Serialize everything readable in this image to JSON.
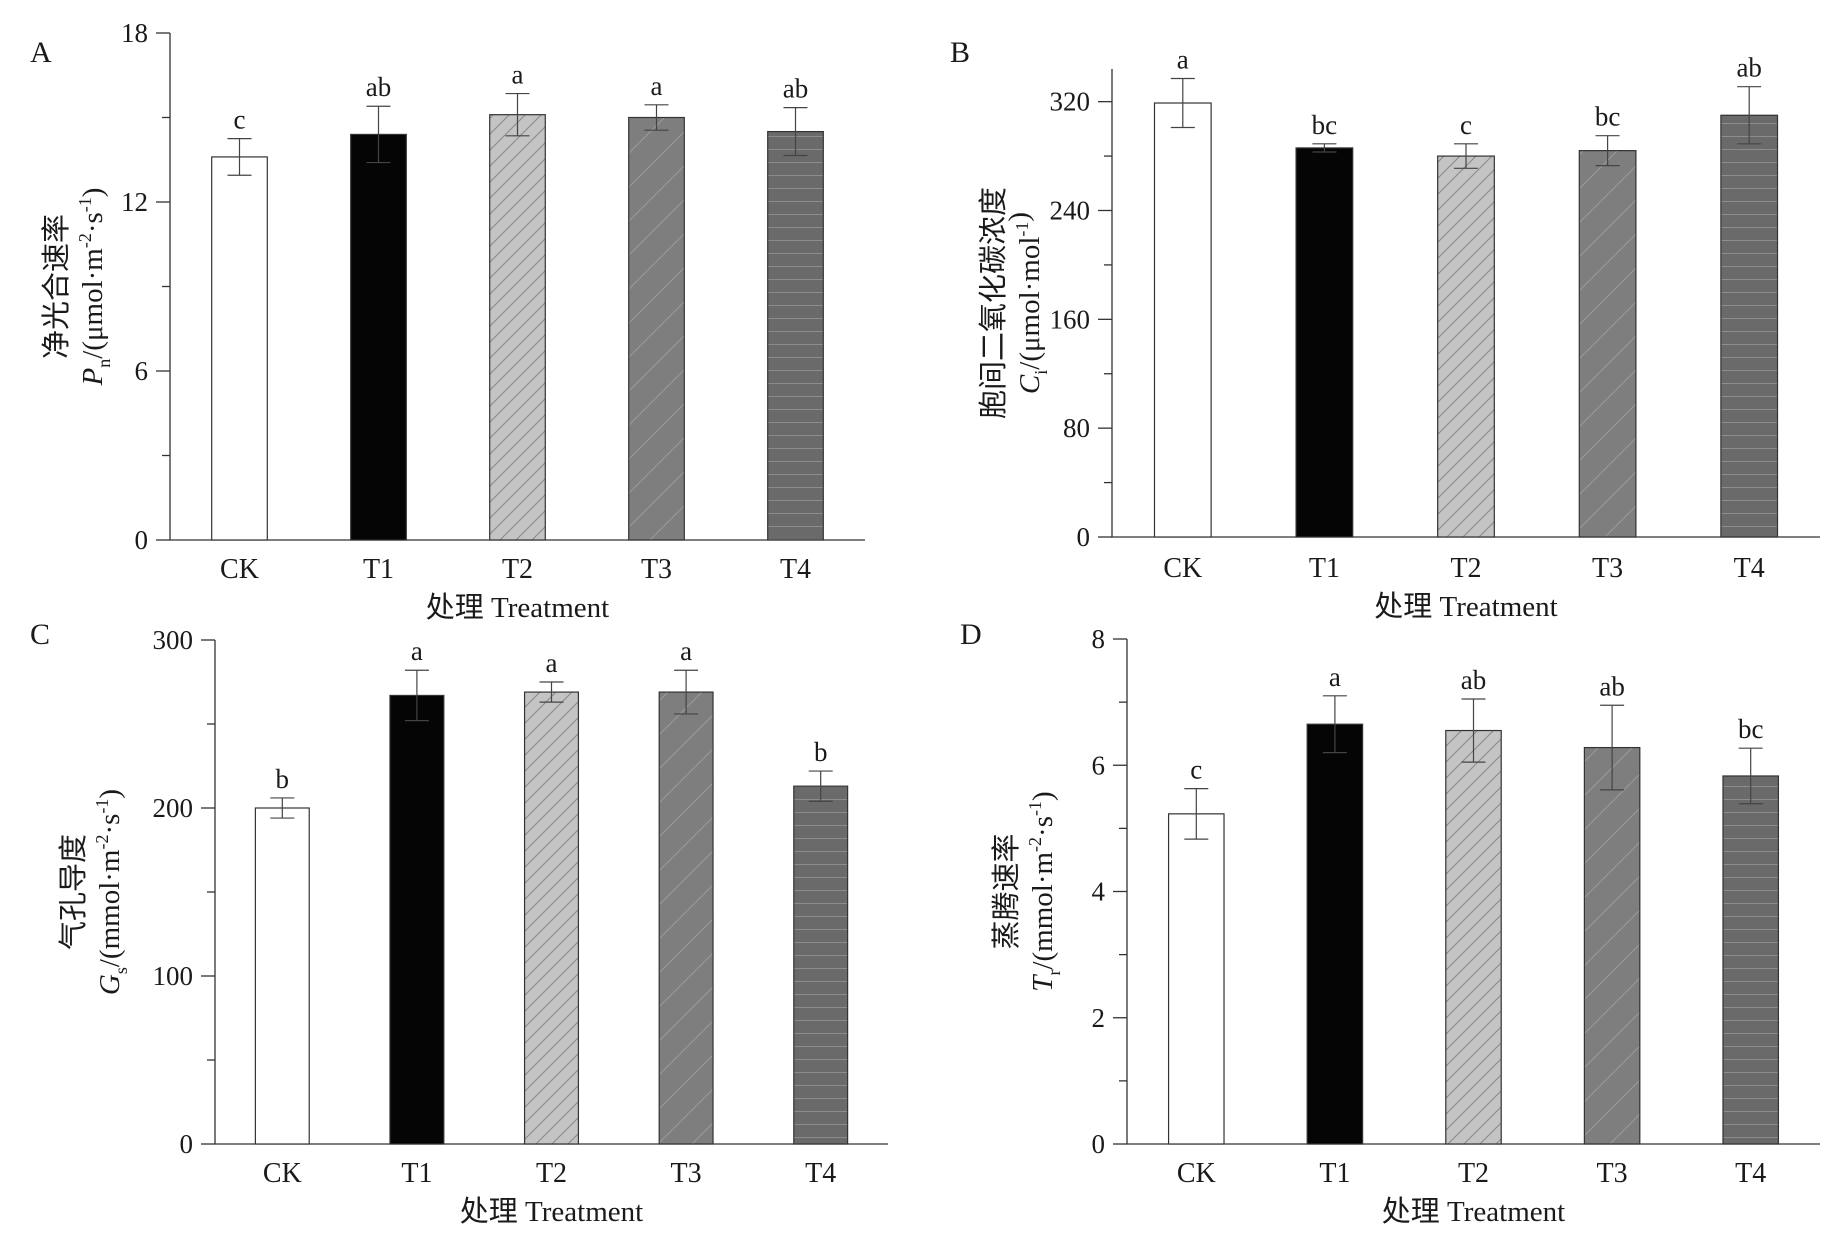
{
  "chart_data": [
    {
      "type": "bar",
      "panel": "A",
      "categories": [
        "CK",
        "T1",
        "T2",
        "T3",
        "T4"
      ],
      "values": [
        13.6,
        14.4,
        15.1,
        15.0,
        14.5
      ],
      "errors": [
        0.65,
        1.0,
        0.75,
        0.45,
        0.85
      ],
      "significance": [
        "c",
        "ab",
        "a",
        "a",
        "ab"
      ],
      "xlabel": "处理 Treatment",
      "ylabel_main": "净光合速率",
      "ylabel_sym": "P",
      "ylabel_sub": "n",
      "ylabel_unit": "/(μmol·m",
      "ylabel_exp1": "-2",
      "ylabel_mid": "·s",
      "ylabel_exp2": "-1",
      "ylabel_end": ")",
      "ylim": [
        0,
        18
      ],
      "yticks": [
        0,
        6,
        12,
        18
      ]
    },
    {
      "type": "bar",
      "panel": "B",
      "categories": [
        "CK",
        "T1",
        "T2",
        "T3",
        "T4"
      ],
      "values": [
        319,
        286,
        280,
        284,
        310
      ],
      "errors": [
        18,
        3,
        9,
        11,
        21
      ],
      "significance": [
        "a",
        "bc",
        "c",
        "bc",
        "ab"
      ],
      "xlabel": "处理 Treatment",
      "ylabel_main": "胞间二氧化碳浓度",
      "ylabel_sym": "C",
      "ylabel_sub": "i",
      "ylabel_unit": "/(μmol·mol",
      "ylabel_exp1": "-1",
      "ylabel_mid": "",
      "ylabel_exp2": "",
      "ylabel_end": ")",
      "ylim": [
        0,
        344
      ],
      "yticks": [
        0,
        80,
        160,
        240,
        320
      ]
    },
    {
      "type": "bar",
      "panel": "C",
      "categories": [
        "CK",
        "T1",
        "T2",
        "T3",
        "T4"
      ],
      "values": [
        200,
        267,
        269,
        269,
        213
      ],
      "errors": [
        6,
        15,
        6,
        13,
        9
      ],
      "significance": [
        "b",
        "a",
        "a",
        "a",
        "b"
      ],
      "xlabel": "处理 Treatment",
      "ylabel_main": "气孔导度",
      "ylabel_sym": "G",
      "ylabel_sub": "s",
      "ylabel_unit": "/(mmol·m",
      "ylabel_exp1": "-2",
      "ylabel_mid": "·s",
      "ylabel_exp2": "-1",
      "ylabel_end": ")",
      "ylim": [
        0,
        300
      ],
      "yticks": [
        0,
        100,
        200,
        300
      ]
    },
    {
      "type": "bar",
      "panel": "D",
      "categories": [
        "CK",
        "T1",
        "T2",
        "T3",
        "T4"
      ],
      "values": [
        5.23,
        6.65,
        6.55,
        6.28,
        5.83
      ],
      "errors": [
        0.4,
        0.45,
        0.5,
        0.67,
        0.44
      ],
      "significance": [
        "c",
        "a",
        "ab",
        "ab",
        "bc"
      ],
      "xlabel": "处理 Treatment",
      "ylabel_main": "蒸腾速率",
      "ylabel_sym": "T",
      "ylabel_sub": "r",
      "ylabel_unit": "/(mmol·m",
      "ylabel_exp1": "-2",
      "ylabel_mid": "·s",
      "ylabel_exp2": "-1",
      "ylabel_end": ")",
      "ylim": [
        0,
        8
      ],
      "yticks": [
        0,
        2,
        4,
        6,
        8
      ]
    }
  ],
  "styles": {
    "bar_fills": [
      "#ffffff",
      "#050505",
      "#c4c4c4",
      "#7e7e7e",
      "#6a6a6a"
    ],
    "patterns": [
      "none",
      "none",
      "diagonal-dense",
      "diagonal-sparse",
      "horizontal"
    ]
  }
}
